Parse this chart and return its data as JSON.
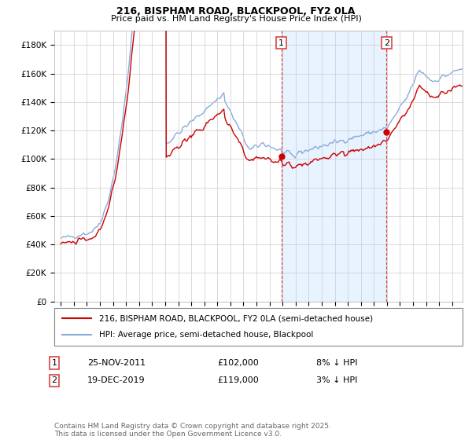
{
  "title1": "216, BISPHAM ROAD, BLACKPOOL, FY2 0LA",
  "title2": "Price paid vs. HM Land Registry's House Price Index (HPI)",
  "legend1": "216, BISPHAM ROAD, BLACKPOOL, FY2 0LA (semi-detached house)",
  "legend2": "HPI: Average price, semi-detached house, Blackpool",
  "annotation1_label": "1",
  "annotation1_date": "25-NOV-2011",
  "annotation1_price": "£102,000",
  "annotation1_pct": "8% ↓ HPI",
  "annotation2_label": "2",
  "annotation2_date": "19-DEC-2019",
  "annotation2_price": "£119,000",
  "annotation2_pct": "3% ↓ HPI",
  "footer": "Contains HM Land Registry data © Crown copyright and database right 2025.\nThis data is licensed under the Open Government Licence v3.0.",
  "color_red": "#cc0000",
  "color_blue": "#88aadd",
  "color_shade": "#ddeeff",
  "color_annotation_line": "#dd4444",
  "ylim_min": 0,
  "ylim_max": 190000,
  "yticks": [
    0,
    20000,
    40000,
    60000,
    80000,
    100000,
    120000,
    140000,
    160000,
    180000
  ],
  "ytick_labels": [
    "£0",
    "£20K",
    "£40K",
    "£60K",
    "£80K",
    "£100K",
    "£120K",
    "£140K",
    "£160K",
    "£180K"
  ],
  "sale1_x": 2011.9,
  "sale1_y": 102000,
  "sale2_x": 2019.97,
  "sale2_y": 119000,
  "xmin": 1994.5,
  "xmax": 2025.8
}
